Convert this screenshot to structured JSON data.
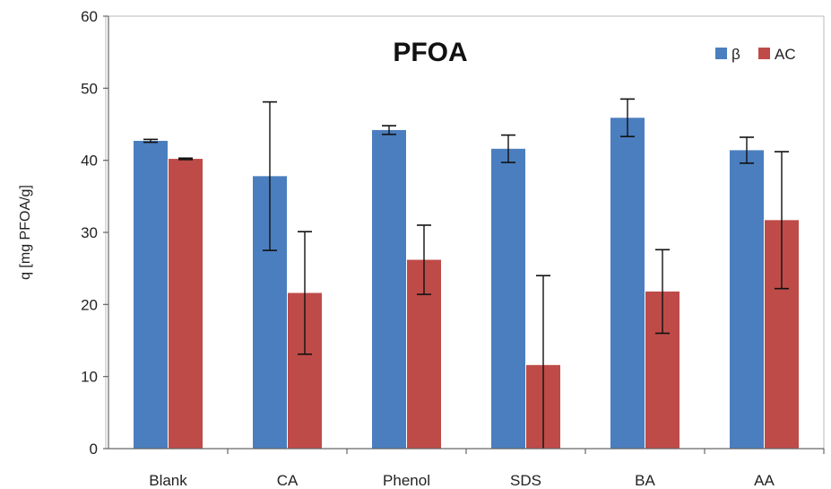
{
  "chart_data": {
    "type": "bar",
    "title": "PFOA",
    "ylabel": "q [mg PFOA/g]",
    "xlabel": "",
    "ylim": [
      0,
      60
    ],
    "yticks": [
      0,
      10,
      20,
      30,
      40,
      50,
      60
    ],
    "categories": [
      "Blank",
      "CA",
      "Phenol",
      "SDS",
      "BA",
      "AA"
    ],
    "series": [
      {
        "name": "β",
        "color": "#4A7EBF",
        "values": [
          42.7,
          37.8,
          44.2,
          41.6,
          45.9,
          41.4
        ],
        "errors": [
          0.2,
          10.3,
          0.6,
          1.9,
          2.6,
          1.8
        ]
      },
      {
        "name": "AC",
        "color": "#BE4B48",
        "values": [
          40.2,
          21.6,
          26.2,
          11.6,
          21.8,
          31.7
        ],
        "errors": [
          0.1,
          8.5,
          4.8,
          12.4,
          5.8,
          9.5
        ]
      }
    ],
    "legend_position": "top-right",
    "grid": false
  }
}
